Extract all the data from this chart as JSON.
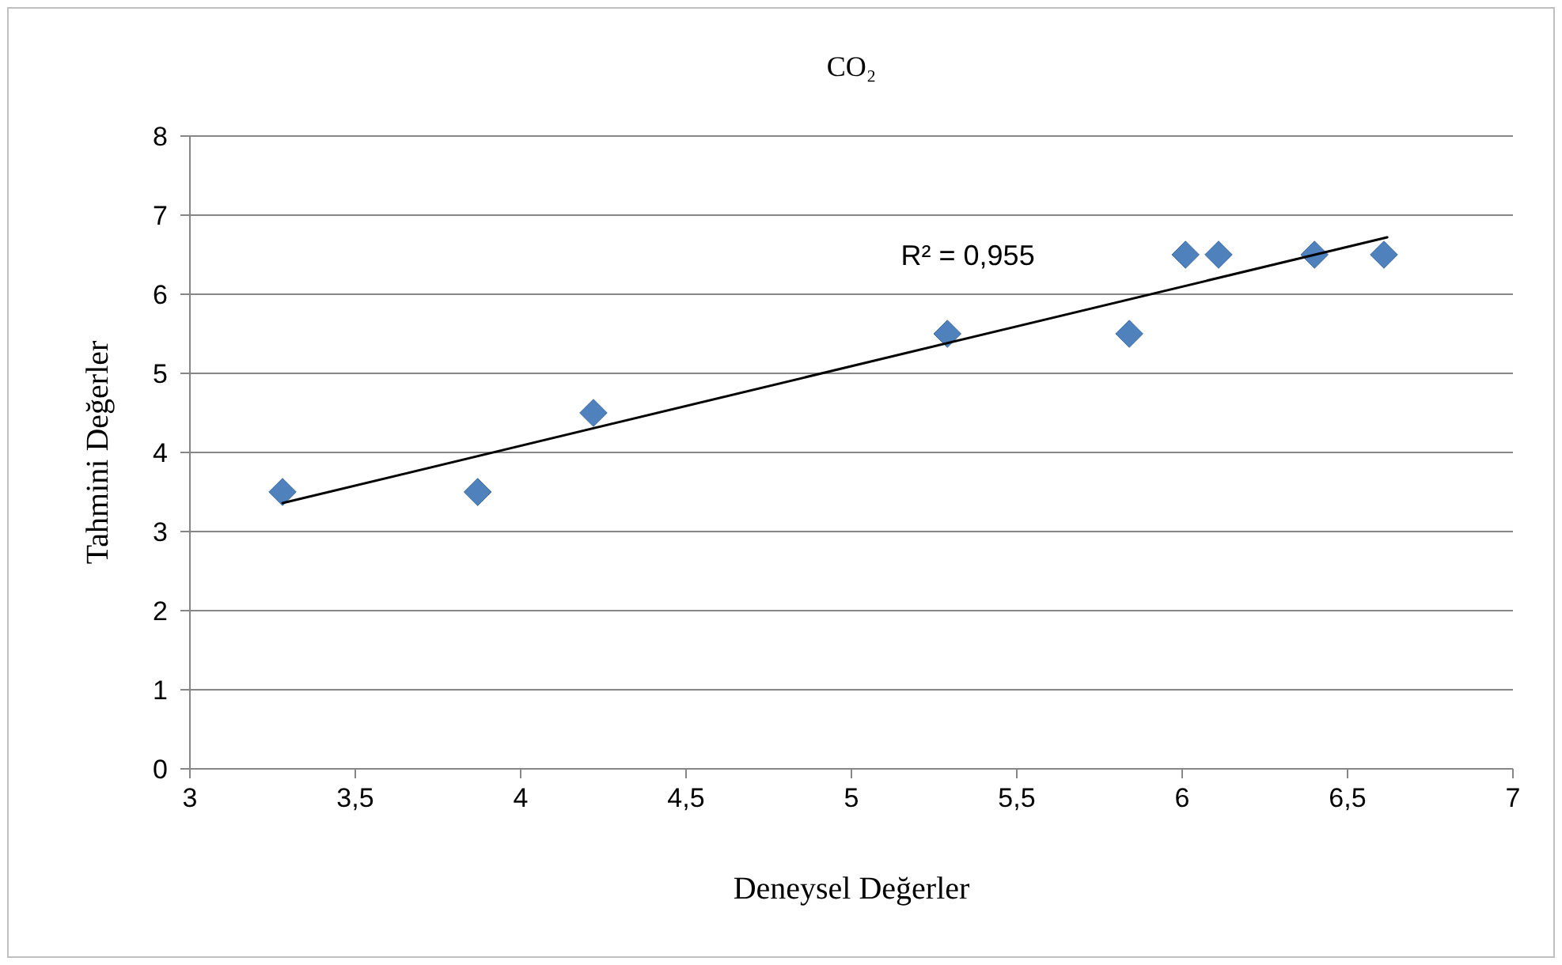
{
  "chart_data": {
    "type": "scatter",
    "title": "CO₂",
    "xlabel": "Deneysel Değerler",
    "ylabel": "Tahmini Değerler",
    "xlim": [
      3,
      7
    ],
    "ylim": [
      0,
      8
    ],
    "xticks": [
      3,
      {
        "value": 3.5,
        "label": "3,5"
      },
      4,
      {
        "value": 4.5,
        "label": "4,5"
      },
      5,
      {
        "value": 5.5,
        "label": "5,5"
      },
      6,
      {
        "value": 6.5,
        "label": "6,5"
      },
      7
    ],
    "yticks": [
      0,
      1,
      2,
      3,
      4,
      5,
      6,
      7,
      8
    ],
    "grid": "y",
    "series": [
      {
        "marker": "diamond",
        "color": "#4f81bd",
        "x": [
          3.28,
          3.87,
          4.22,
          5.29,
          5.84,
          6.01,
          6.11,
          6.4,
          6.61
        ],
        "values": [
          3.5,
          3.5,
          4.5,
          5.5,
          5.5,
          6.5,
          6.5,
          6.5,
          6.5
        ]
      },
      {
        "type": "line",
        "color": "#000000",
        "x": [
          3.28,
          6.62
        ],
        "values": [
          3.36,
          6.72
        ]
      }
    ],
    "annotations": [
      "R² = 0,955"
    ]
  }
}
